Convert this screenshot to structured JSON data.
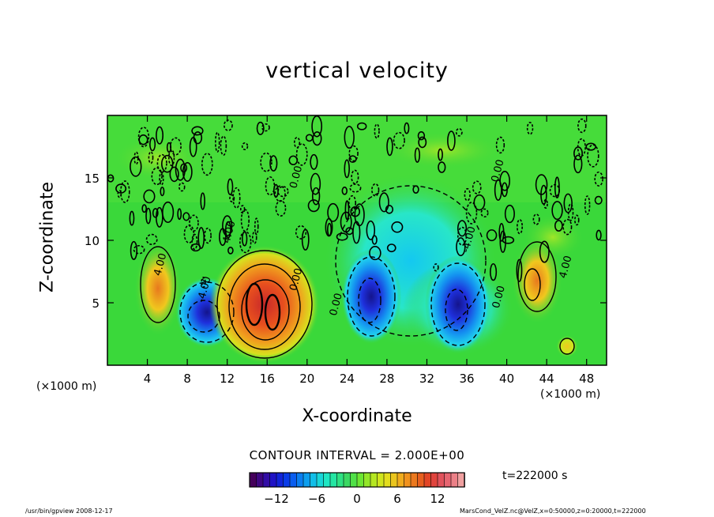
{
  "title": "vertical velocity",
  "x_unit_left": "(×1000 m)",
  "x_unit_right": "(×1000 m)",
  "contour_interval": "CONTOUR INTERVAL = 2.000E+00",
  "time_label": "t=222000 s",
  "footer_left": "/usr/bin/gpview  2008-12-17",
  "footer_right": "MarsCond_VelZ.nc@VelZ,x=0:50000,z=0:20000,t=222000",
  "colors": {
    "background_field": "#3ad83a",
    "strong_negative": "#1a1adc",
    "negative": "#22d8ee",
    "weak_positive": "#c8e81e",
    "positive": "#f0b41e",
    "strong_positive": "#e8321e",
    "contour_line": "#000000"
  },
  "chart_data": {
    "type": "heatmap",
    "title": "vertical velocity",
    "xlabel": "X-coordinate",
    "ylabel": "Z-coordinate",
    "xlim": [
      0,
      50
    ],
    "ylim": [
      0,
      20
    ],
    "xticks": [
      4,
      8,
      12,
      16,
      20,
      24,
      28,
      32,
      36,
      40,
      44,
      48
    ],
    "yticks": [
      5,
      10,
      15
    ],
    "x_unit": "(×1000 m)",
    "contour_interval": 2.0,
    "contour_labels": [
      {
        "text": "4.00",
        "x": 5.6,
        "z": 8.0
      },
      {
        "text": "4.00",
        "x": 12.5,
        "z": 10.6
      },
      {
        "text": "-4.00",
        "x": 10.0,
        "z": 6.0
      },
      {
        "text": "0.00",
        "x": 19.2,
        "z": 6.8
      },
      {
        "text": "0.00",
        "x": 23.2,
        "z": 4.8
      },
      {
        "text": "-4.00",
        "x": 36.5,
        "z": 10.0
      },
      {
        "text": "0.00",
        "x": 39.5,
        "z": 5.4
      },
      {
        "text": "4.00",
        "x": 46.2,
        "z": 7.8
      },
      {
        "text": "0.00",
        "x": 19.2,
        "z": 15.0
      },
      {
        "text": "0.00",
        "x": 39.4,
        "z": 15.5
      }
    ],
    "features": [
      {
        "sign": "positive",
        "center_x": 15.6,
        "center_z": 5.2,
        "peak": 14
      },
      {
        "sign": "positive",
        "center_x": 5.4,
        "center_z": 6.0,
        "peak": 6
      },
      {
        "sign": "positive",
        "center_x": 42.8,
        "center_z": 6.5,
        "peak": 8
      },
      {
        "sign": "negative",
        "center_x": 9.5,
        "center_z": 3.8,
        "peak": -12
      },
      {
        "sign": "negative",
        "center_x": 26.5,
        "center_z": 5.5,
        "peak": -12
      },
      {
        "sign": "negative",
        "center_x": 35.0,
        "center_z": 5.0,
        "peak": -14
      },
      {
        "sign": "negative",
        "center_x": 30.0,
        "center_z": 10.0,
        "peak": -4
      }
    ],
    "colorbar": {
      "range": [
        -16,
        16
      ],
      "ticks": [
        -12,
        -6,
        0,
        6,
        12
      ],
      "colors": [
        "#44005a",
        "#3a0a96",
        "#1e14c8",
        "#0a30e6",
        "#0a64f0",
        "#0a96f0",
        "#14c8e6",
        "#1ee6c8",
        "#28e696",
        "#3ad864",
        "#5ae63a",
        "#96e628",
        "#c8e81e",
        "#e6dc1e",
        "#f0b41e",
        "#f08c1e",
        "#e8641e",
        "#e03c28",
        "#e0505a",
        "#e86e7a",
        "#f0a0a0"
      ]
    }
  }
}
